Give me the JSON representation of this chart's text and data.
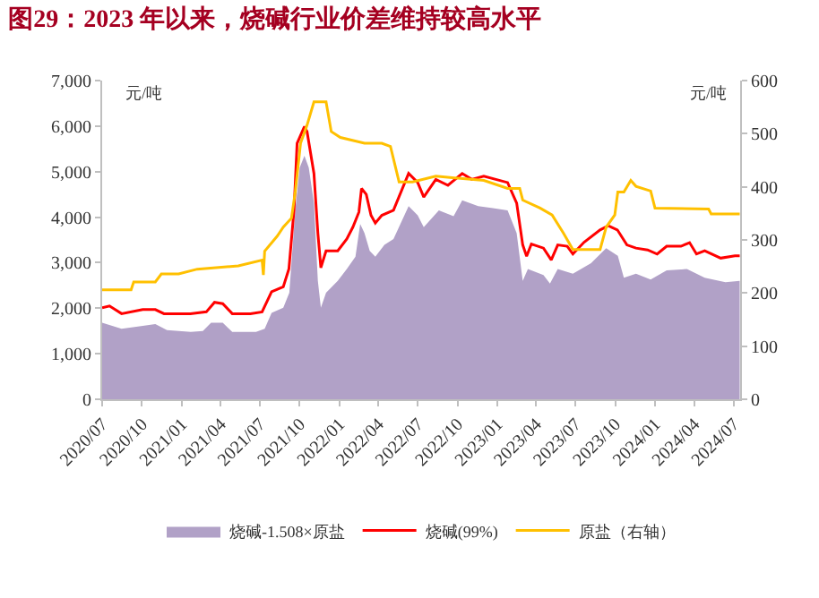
{
  "chart_data": {
    "type": "line",
    "title": "图29：2023 年以来，烧碱行业价差维持较高水平",
    "ylabel": "元/吨",
    "y2label": "元/吨",
    "xlim": [
      "2020-07-01",
      "2024-07-16"
    ],
    "xticks": [
      {
        "value": "2020-07-01",
        "label": "2020/07"
      },
      {
        "value": "2020-10-01",
        "label": "2020/10"
      },
      {
        "value": "2021-01-01",
        "label": "2021/01"
      },
      {
        "value": "2021-04-01",
        "label": "2021/04"
      },
      {
        "value": "2021-07-01",
        "label": "2021/07"
      },
      {
        "value": "2021-10-01",
        "label": "2021/10"
      },
      {
        "value": "2022-01-01",
        "label": "2022/01"
      },
      {
        "value": "2022-04-01",
        "label": "2022/04"
      },
      {
        "value": "2022-07-01",
        "label": "2022/07"
      },
      {
        "value": "2022-10-01",
        "label": "2022/10"
      },
      {
        "value": "2023-01-01",
        "label": "2023/01"
      },
      {
        "value": "2023-04-01",
        "label": "2023/04"
      },
      {
        "value": "2023-07-01",
        "label": "2023/07"
      },
      {
        "value": "2023-10-01",
        "label": "2023/10"
      },
      {
        "value": "2024-01-01",
        "label": "2024/01"
      },
      {
        "value": "2024-04-01",
        "label": "2024/04"
      },
      {
        "value": "2024-07-01",
        "label": "2024/07"
      }
    ],
    "ylim": [
      0,
      7000
    ],
    "yticks": [
      {
        "value": 0,
        "label": "0"
      },
      {
        "value": 1000,
        "label": "1,000"
      },
      {
        "value": 2000,
        "label": "2,000"
      },
      {
        "value": 3000,
        "label": "3,000"
      },
      {
        "value": 4000,
        "label": "4,000"
      },
      {
        "value": 5000,
        "label": "5,000"
      },
      {
        "value": 6000,
        "label": "6,000"
      },
      {
        "value": 7000,
        "label": "7,000"
      }
    ],
    "y2lim": [
      0,
      600
    ],
    "y2ticks": [
      0,
      100,
      200,
      300,
      400,
      500,
      600
    ],
    "legend": "bottom",
    "marker": "none",
    "line_style": "solid",
    "series": [
      {
        "name": "烧碱-1.508×原盐",
        "type": "area",
        "color": "#b1a1c7",
        "x": [
          "2020-07-01",
          "2020-08-15",
          "2020-10-03",
          "2020-11-01",
          "2020-11-28",
          "2021-01-22",
          "2021-02-19",
          "2021-03-10",
          "2021-04-06",
          "2021-04-28",
          "2021-06-22",
          "2021-07-12",
          "2021-07-28",
          "2021-08-24",
          "2021-09-07",
          "2021-09-21",
          "2021-10-01",
          "2021-10-12",
          "2021-10-22",
          "2021-11-03",
          "2021-11-12",
          "2021-11-19",
          "2021-12-01",
          "2021-12-28",
          "2022-01-18",
          "2022-02-07",
          "2022-02-18",
          "2022-02-28",
          "2022-03-12",
          "2022-03-25",
          "2022-04-15",
          "2022-05-06",
          "2022-06-10",
          "2022-07-01",
          "2022-07-15",
          "2022-08-19",
          "2022-09-22",
          "2022-10-12",
          "2022-11-18",
          "2022-12-22",
          "2023-01-25",
          "2023-02-15",
          "2023-03-01",
          "2023-03-13",
          "2023-04-18",
          "2023-05-03",
          "2023-05-21",
          "2023-06-25",
          "2023-08-06",
          "2023-09-10",
          "2023-10-07",
          "2023-10-21",
          "2023-11-18",
          "2023-12-22",
          "2024-01-28",
          "2024-03-15",
          "2024-04-25",
          "2024-06-12",
          "2024-07-15"
        ],
        "values": [
          1680,
          1550,
          1610,
          1650,
          1520,
          1480,
          1500,
          1680,
          1680,
          1480,
          1480,
          1550,
          1900,
          2010,
          2340,
          4170,
          5090,
          5350,
          5090,
          4310,
          2600,
          2010,
          2340,
          2600,
          2860,
          3130,
          3850,
          3650,
          3260,
          3130,
          3390,
          3520,
          4240,
          4040,
          3780,
          4150,
          4020,
          4370,
          4240,
          4200,
          4150,
          3650,
          2600,
          2860,
          2730,
          2540,
          2860,
          2760,
          2990,
          3320,
          3150,
          2670,
          2760,
          2630,
          2830,
          2860,
          2670,
          2570,
          2600
        ]
      },
      {
        "name": "烧碱(99%)",
        "color": "#ff0000",
        "x": [
          "2020-07-01",
          "2020-07-18",
          "2020-08-15",
          "2020-10-03",
          "2020-11-01",
          "2020-11-21",
          "2021-01-21",
          "2021-02-27",
          "2021-03-18",
          "2021-04-06",
          "2021-04-28",
          "2021-06-09",
          "2021-07-06",
          "2021-07-28",
          "2021-08-24",
          "2021-09-06",
          "2021-09-18",
          "2021-09-25",
          "2021-10-12",
          "2021-10-18",
          "2021-11-03",
          "2021-11-12",
          "2021-11-19",
          "2021-12-01",
          "2021-12-28",
          "2022-01-18",
          "2022-02-01",
          "2022-02-15",
          "2022-02-21",
          "2022-03-04",
          "2022-03-15",
          "2022-03-25",
          "2022-04-09",
          "2022-05-06",
          "2022-06-10",
          "2022-07-01",
          "2022-07-15",
          "2022-08-12",
          "2022-09-09",
          "2022-10-12",
          "2022-11-03",
          "2022-12-01",
          "2023-01-25",
          "2023-02-15",
          "2023-03-01",
          "2023-03-10",
          "2023-03-21",
          "2023-04-18",
          "2023-05-06",
          "2023-05-21",
          "2023-06-12",
          "2023-06-25",
          "2023-07-21",
          "2023-08-27",
          "2023-09-15",
          "2023-10-06",
          "2023-10-28",
          "2023-11-18",
          "2023-12-15",
          "2024-01-06",
          "2024-01-28",
          "2024-03-01",
          "2024-03-21",
          "2024-04-06",
          "2024-04-25",
          "2024-06-01",
          "2024-07-04",
          "2024-07-15"
        ],
        "values": [
          2010,
          2050,
          1880,
          1970,
          1970,
          1880,
          1880,
          1920,
          2130,
          2100,
          1880,
          1880,
          1920,
          2360,
          2470,
          2860,
          4170,
          5620,
          5990,
          5880,
          4960,
          3650,
          2890,
          3260,
          3260,
          3520,
          3780,
          4110,
          4630,
          4500,
          4040,
          3870,
          4040,
          4150,
          4960,
          4760,
          4440,
          4830,
          4700,
          4960,
          4830,
          4900,
          4760,
          4310,
          3390,
          3140,
          3410,
          3320,
          3060,
          3390,
          3360,
          3190,
          3450,
          3720,
          3810,
          3720,
          3390,
          3320,
          3280,
          3190,
          3360,
          3360,
          3440,
          3190,
          3260,
          3100,
          3150,
          3150
        ]
      },
      {
        "name": "原盐（右轴）",
        "axis": "y2",
        "color": "#ffc000",
        "x": [
          "2020-07-01",
          "2020-09-06",
          "2020-09-12",
          "2020-11-01",
          "2020-11-15",
          "2020-12-25",
          "2021-02-06",
          "2021-05-12",
          "2021-07-06",
          "2021-07-09",
          "2021-07-12",
          "2021-08-10",
          "2021-08-24",
          "2021-09-12",
          "2021-09-21",
          "2021-10-03",
          "2021-10-18",
          "2021-11-03",
          "2021-12-01",
          "2021-12-13",
          "2022-01-03",
          "2022-02-28",
          "2022-04-09",
          "2022-04-29",
          "2022-05-19",
          "2022-06-19",
          "2022-08-12",
          "2022-12-01",
          "2023-01-25",
          "2023-02-22",
          "2023-03-01",
          "2023-04-10",
          "2023-05-08",
          "2023-06-03",
          "2023-06-25",
          "2023-08-27",
          "2023-09-10",
          "2023-09-30",
          "2023-10-07",
          "2023-10-21",
          "2023-11-06",
          "2023-11-18",
          "2023-12-22",
          "2024-01-01",
          "2024-05-04",
          "2024-05-10",
          "2024-07-15"
        ],
        "values": [
          206,
          206,
          221,
          221,
          236,
          236,
          245,
          251,
          262,
          234,
          279,
          307,
          324,
          341,
          392,
          482,
          516,
          560,
          560,
          504,
          493,
          482,
          482,
          476,
          409,
          409,
          420,
          412,
          397,
          397,
          375,
          360,
          347,
          313,
          282,
          282,
          324,
          347,
          390,
          390,
          412,
          401,
          392,
          360,
          358,
          349,
          349
        ]
      }
    ]
  }
}
